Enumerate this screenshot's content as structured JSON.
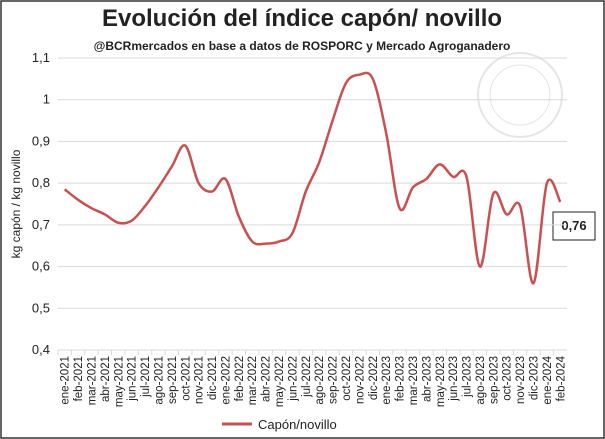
{
  "chart_data": {
    "type": "line",
    "title": "Evolución del índice capón/ novillo",
    "subtitle": "@BCRmercados  en base a datos de ROSPORC y Mercado Agroganadero",
    "y_label": "kg capón / kg novillo",
    "annotation": "0,76",
    "categories": [
      "ene-2021",
      "feb-2021",
      "mar-2021",
      "abr-2021",
      "may-2021",
      "jun-2021",
      "jul-2021",
      "ago-2021",
      "sep-2021",
      "oct-2021",
      "nov-2021",
      "dic-2021",
      "ene-2022",
      "feb-2022",
      "mar-2022",
      "abr-2022",
      "may-2022",
      "jun-2022",
      "jul-2022",
      "ago-2022",
      "sep-2022",
      "oct-2022",
      "nov-2022",
      "dic-2022",
      "ene-2023",
      "feb-2023",
      "mar-2023",
      "abr-2023",
      "may-2023",
      "jun-2023",
      "jul-2023",
      "ago-2023",
      "sep-2023",
      "oct-2023",
      "nov-2023",
      "dic-2023",
      "ene-2024",
      "feb-2024"
    ],
    "series": [
      {
        "name": "Capón/novillo",
        "color": "#c9504f",
        "values": [
          0.785,
          0.76,
          0.74,
          0.725,
          0.705,
          0.71,
          0.745,
          0.79,
          0.84,
          0.89,
          0.8,
          0.78,
          0.81,
          0.72,
          0.66,
          0.655,
          0.66,
          0.68,
          0.78,
          0.85,
          0.95,
          1.04,
          1.06,
          1.05,
          0.92,
          0.74,
          0.79,
          0.81,
          0.845,
          0.815,
          0.815,
          0.6,
          0.775,
          0.725,
          0.745,
          0.56,
          0.8,
          0.755
        ]
      }
    ],
    "ylim": [
      0.4,
      1.1
    ],
    "yticks": [
      {
        "value": 0.4,
        "label": "0,4"
      },
      {
        "value": 0.5,
        "label": "0,5"
      },
      {
        "value": 0.6,
        "label": "0,6"
      },
      {
        "value": 0.7,
        "label": "0,7"
      },
      {
        "value": 0.8,
        "label": "0,8"
      },
      {
        "value": 0.9,
        "label": "0,9"
      },
      1,
      {
        "value": 1.1,
        "label": "1,1"
      }
    ],
    "grid": true
  }
}
